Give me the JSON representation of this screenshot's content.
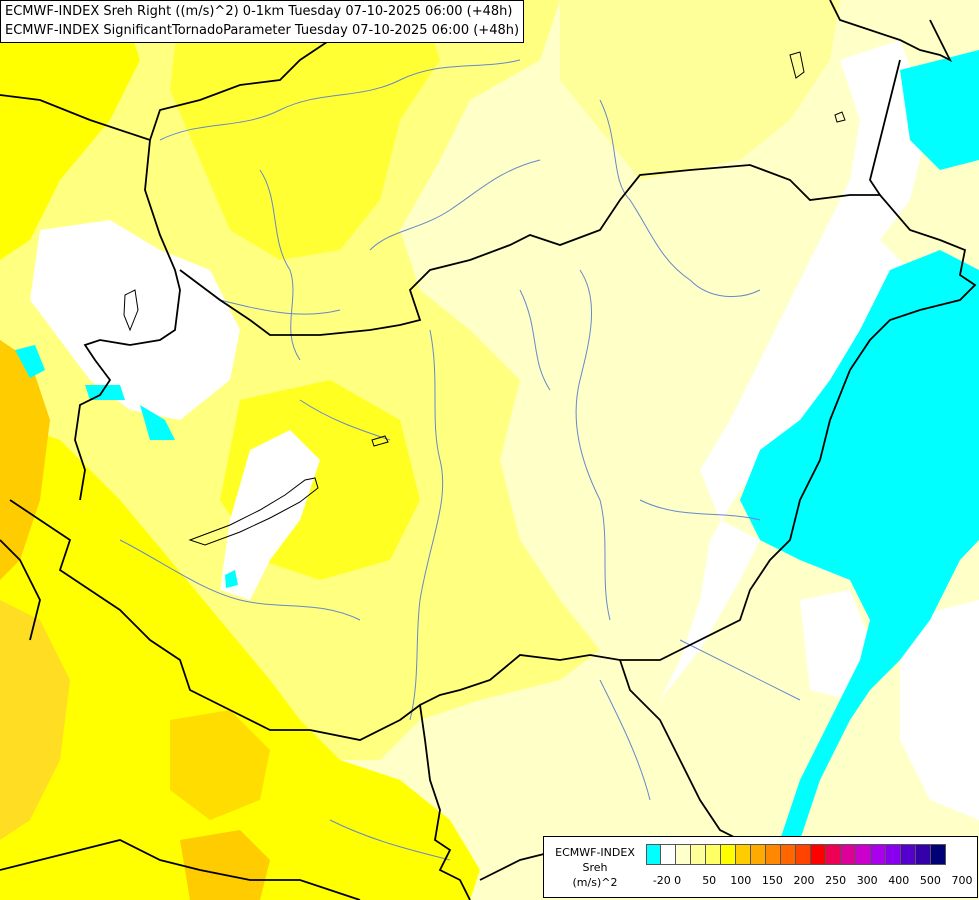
{
  "title": {
    "line1": "ECMWF-INDEX Sreh Right ((m/s)^2) 0-1km Tuesday 07-10-2025 06:00 (+48h)",
    "line2": "ECMWF-INDEX SignificantTornadoParameter Tuesday 07-10-2025 06:00 (+48h)"
  },
  "legend": {
    "line1": "ECMWF-INDEX",
    "line2": "Sreh",
    "line3": "(m/s)^2",
    "colors": [
      "#00ffff",
      "#ffffff",
      "#ffffcc",
      "#ffff99",
      "#ffff66",
      "#ffff00",
      "#ffcc00",
      "#ffaa00",
      "#ff8800",
      "#ff6600",
      "#ff4400",
      "#ff0000",
      "#ee0055",
      "#dd0099",
      "#cc00cc",
      "#aa00ee",
      "#8800ee",
      "#5500cc",
      "#3300aa",
      "#000077"
    ],
    "tick_labels": [
      "-20",
      "0",
      "50",
      "100",
      "150",
      "200",
      "250",
      "300",
      "400",
      "500",
      "700"
    ],
    "tick_index": [
      1,
      2,
      4,
      6,
      8,
      10,
      12,
      14,
      16,
      18,
      20
    ]
  },
  "colors": {
    "bright_yellow": "#ffff00",
    "yellow": "#ffff66",
    "pale_yellow": "#ffffc8",
    "white": "#ffffff",
    "cyan": "#00ffff",
    "orange": "#ffcc00",
    "border": "#000000",
    "river": "#6688cc"
  }
}
